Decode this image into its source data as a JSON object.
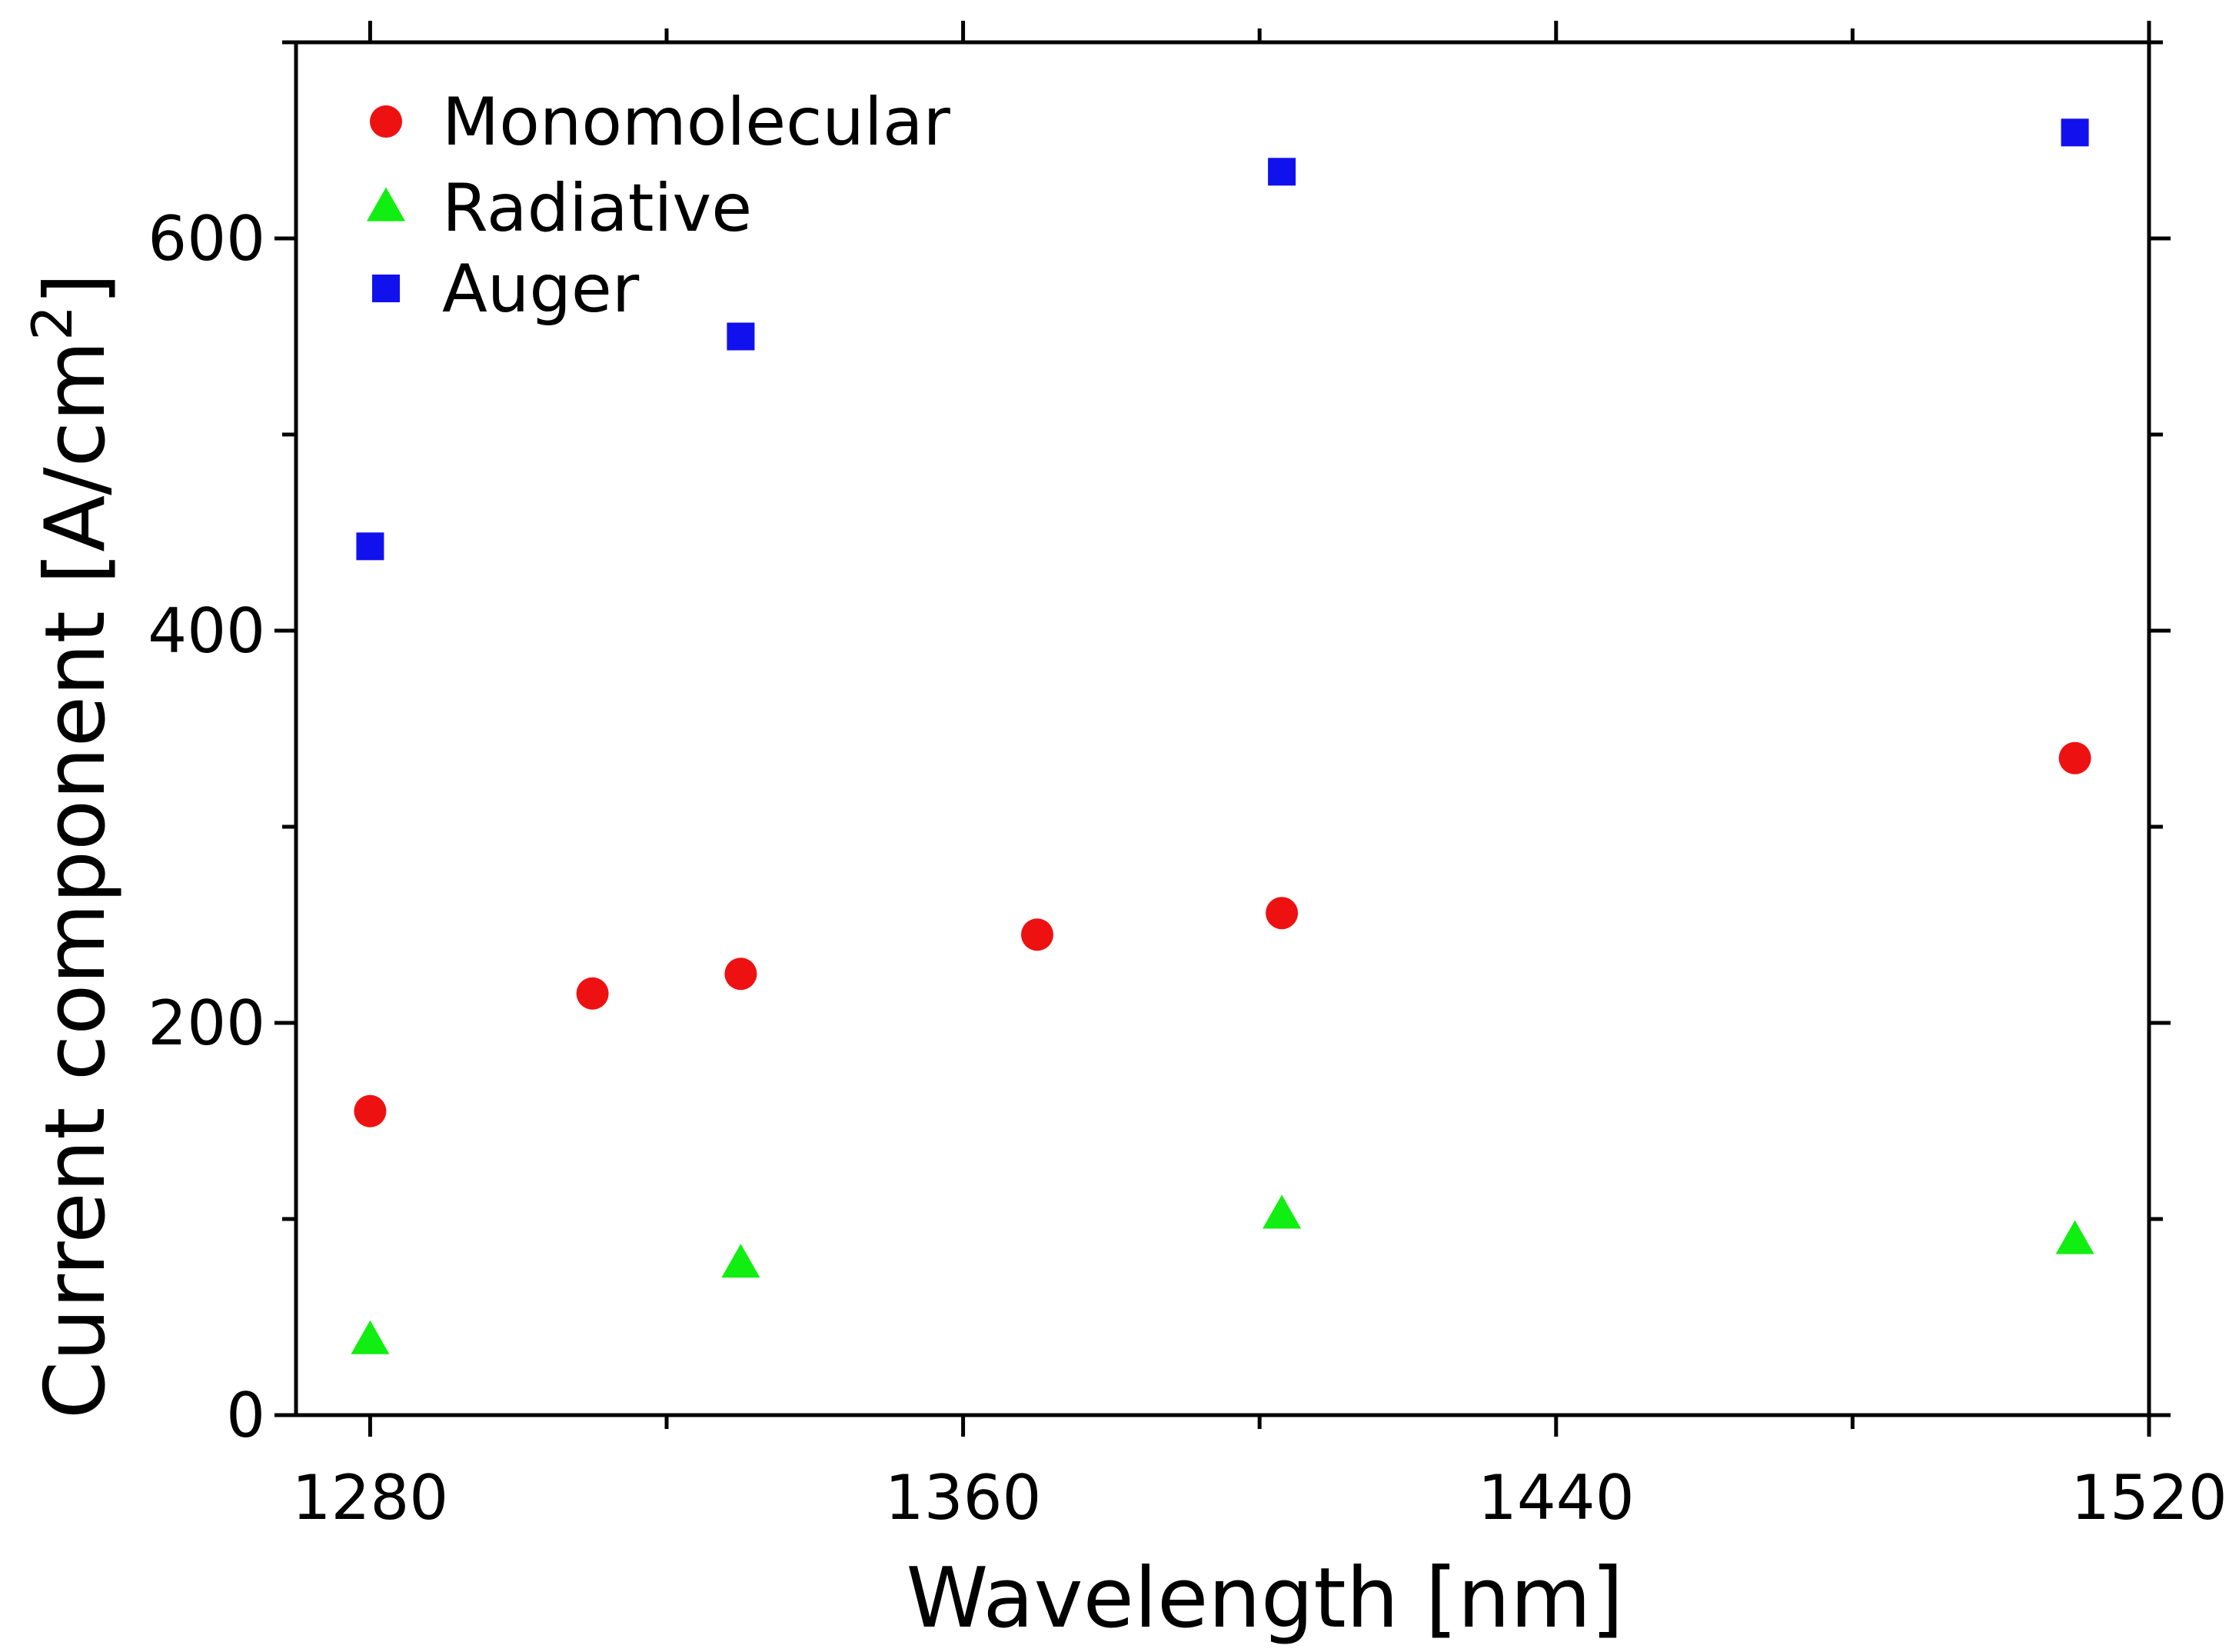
{
  "chart_data": {
    "type": "scatter",
    "title": "",
    "xlabel": "Wavelength [nm]",
    "ylabel_main": "Current component [A/cm",
    "ylabel_sup": "2",
    "ylabel_end": "]",
    "xlim": [
      1270,
      1520
    ],
    "ylim": [
      0,
      700
    ],
    "xticks": [
      1280,
      1360,
      1440,
      1520
    ],
    "xticks_minor": [
      1320,
      1400,
      1480
    ],
    "yticks": [
      0,
      200,
      400,
      600
    ],
    "yticks_minor": [
      100,
      300,
      500,
      700
    ],
    "legend_position": "top-left",
    "series": [
      {
        "name": "Monomolecular",
        "marker": "circle",
        "color": "#ee1111",
        "x": [
          1280,
          1310,
          1330,
          1370,
          1403,
          1510
        ],
        "y": [
          155,
          215,
          225,
          245,
          256,
          335
        ]
      },
      {
        "name": "Radiative",
        "marker": "triangle",
        "color": "#11ee11",
        "x": [
          1280,
          1330,
          1403,
          1510
        ],
        "y": [
          38,
          77,
          102,
          89
        ]
      },
      {
        "name": "Auger",
        "marker": "square",
        "color": "#1111ee",
        "x": [
          1280,
          1330,
          1403,
          1510
        ],
        "y": [
          443,
          550,
          634,
          654
        ]
      }
    ]
  }
}
